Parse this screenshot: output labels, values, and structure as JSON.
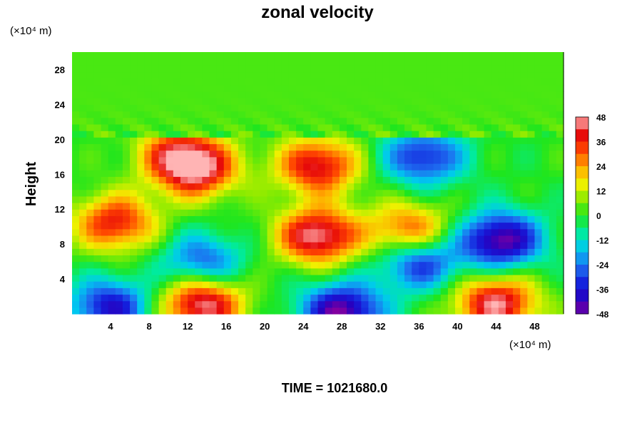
{
  "chart_data": {
    "type": "heatmap",
    "title": "zonal velocity",
    "ylabel": "Height",
    "x_unit": "(×10⁴ m)",
    "y_unit": "(×10⁴ m)",
    "xlim": [
      0,
      51
    ],
    "ylim": [
      0,
      30
    ],
    "x_ticks": [
      4,
      8,
      12,
      16,
      20,
      24,
      28,
      32,
      36,
      40,
      44,
      48
    ],
    "y_ticks": [
      4,
      8,
      12,
      16,
      20,
      24,
      28
    ],
    "colorbar": {
      "min": -48,
      "max": 48,
      "ticks": [
        48,
        36,
        24,
        12,
        0,
        -12,
        -24,
        -36,
        -48
      ]
    },
    "field_features": [
      {
        "x": 4.5,
        "y": 10.5,
        "value": 38
      },
      {
        "x": 11,
        "y": 18.5,
        "value": 30
      },
      {
        "x": 13,
        "y": 16.5,
        "value": 40
      },
      {
        "x": 25.5,
        "y": 9,
        "value": 48
      },
      {
        "x": 25.5,
        "y": 17,
        "value": 42
      },
      {
        "x": 35,
        "y": 9.5,
        "value": 34
      },
      {
        "x": 13.5,
        "y": 1.2,
        "value": 48
      },
      {
        "x": 44,
        "y": 1.2,
        "value": 46
      },
      {
        "x": 13.5,
        "y": 6,
        "value": -28
      },
      {
        "x": 36.5,
        "y": 18,
        "value": -34
      },
      {
        "x": 44.5,
        "y": 8.5,
        "value": -48
      },
      {
        "x": 28,
        "y": 0.3,
        "value": -48
      },
      {
        "x": 4,
        "y": 0.8,
        "value": -38
      },
      {
        "x": 36,
        "y": 6,
        "value": -35
      }
    ],
    "time_label": "TIME = 1021680.0"
  }
}
